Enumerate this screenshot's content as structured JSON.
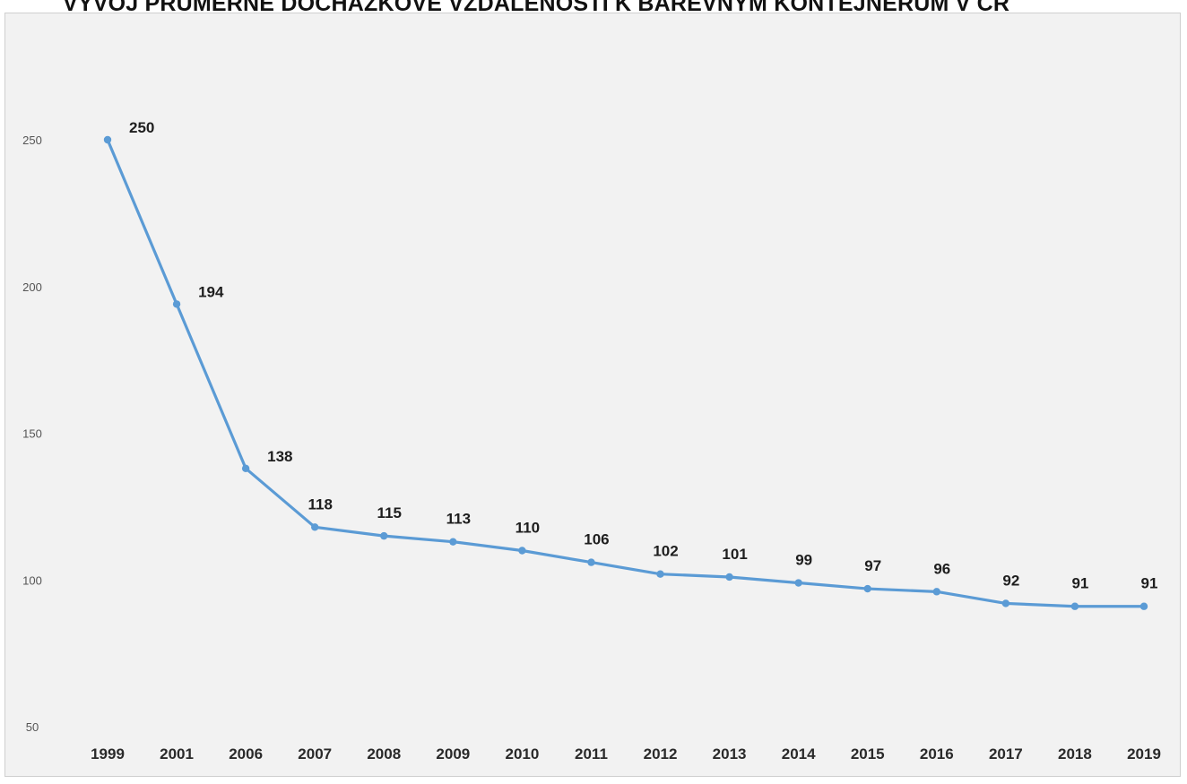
{
  "chart_data": {
    "type": "line",
    "title": "VÝVOJ PRŮMĚRNÉ DOCHÁZKOVÉ VZDÁLENOSTI K BAREVNÝM KONTEJNERŮM V ČR",
    "xlabel": "",
    "ylabel": "",
    "categories": [
      "1999",
      "2001",
      "2006",
      "2007",
      "2008",
      "2009",
      "2010",
      "2011",
      "2012",
      "2013",
      "2014",
      "2015",
      "2016",
      "2017",
      "2018",
      "2019"
    ],
    "series": [
      {
        "values": [
          250,
          194,
          138,
          118,
          115,
          113,
          110,
          106,
          102,
          101,
          99,
          97,
          96,
          92,
          91,
          91
        ],
        "color": "#5b9bd5"
      }
    ],
    "yticks": [
      50,
      100,
      150,
      200,
      250
    ],
    "ylim": [
      50,
      250
    ],
    "grid": false,
    "legend": "none",
    "colors": {
      "background": "#f2f2f2",
      "line": "#5b9bd5"
    }
  }
}
